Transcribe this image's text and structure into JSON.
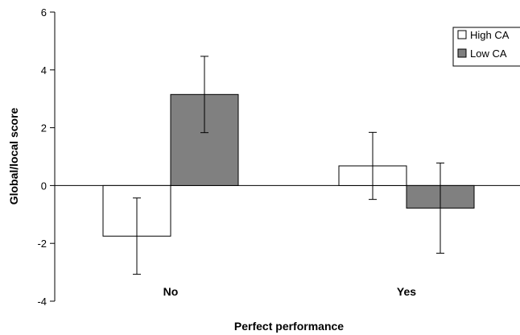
{
  "chart_data": {
    "type": "bar",
    "categories": [
      "No",
      "Yes"
    ],
    "series": [
      {
        "name": "High CA",
        "color": "#ffffff",
        "values": [
          -1.75,
          0.68
        ],
        "errors": [
          1.32,
          1.16
        ]
      },
      {
        "name": "Low CA",
        "color": "#808080",
        "values": [
          3.15,
          -0.78
        ],
        "errors": [
          1.32,
          1.56
        ]
      }
    ],
    "xlabel": "Perfect performance",
    "ylabel": "Global/local score",
    "ylim": [
      -4,
      6
    ],
    "yticks": [
      -4,
      -2,
      0,
      2,
      4,
      6
    ],
    "grid": false,
    "legend_position": "top-right"
  }
}
